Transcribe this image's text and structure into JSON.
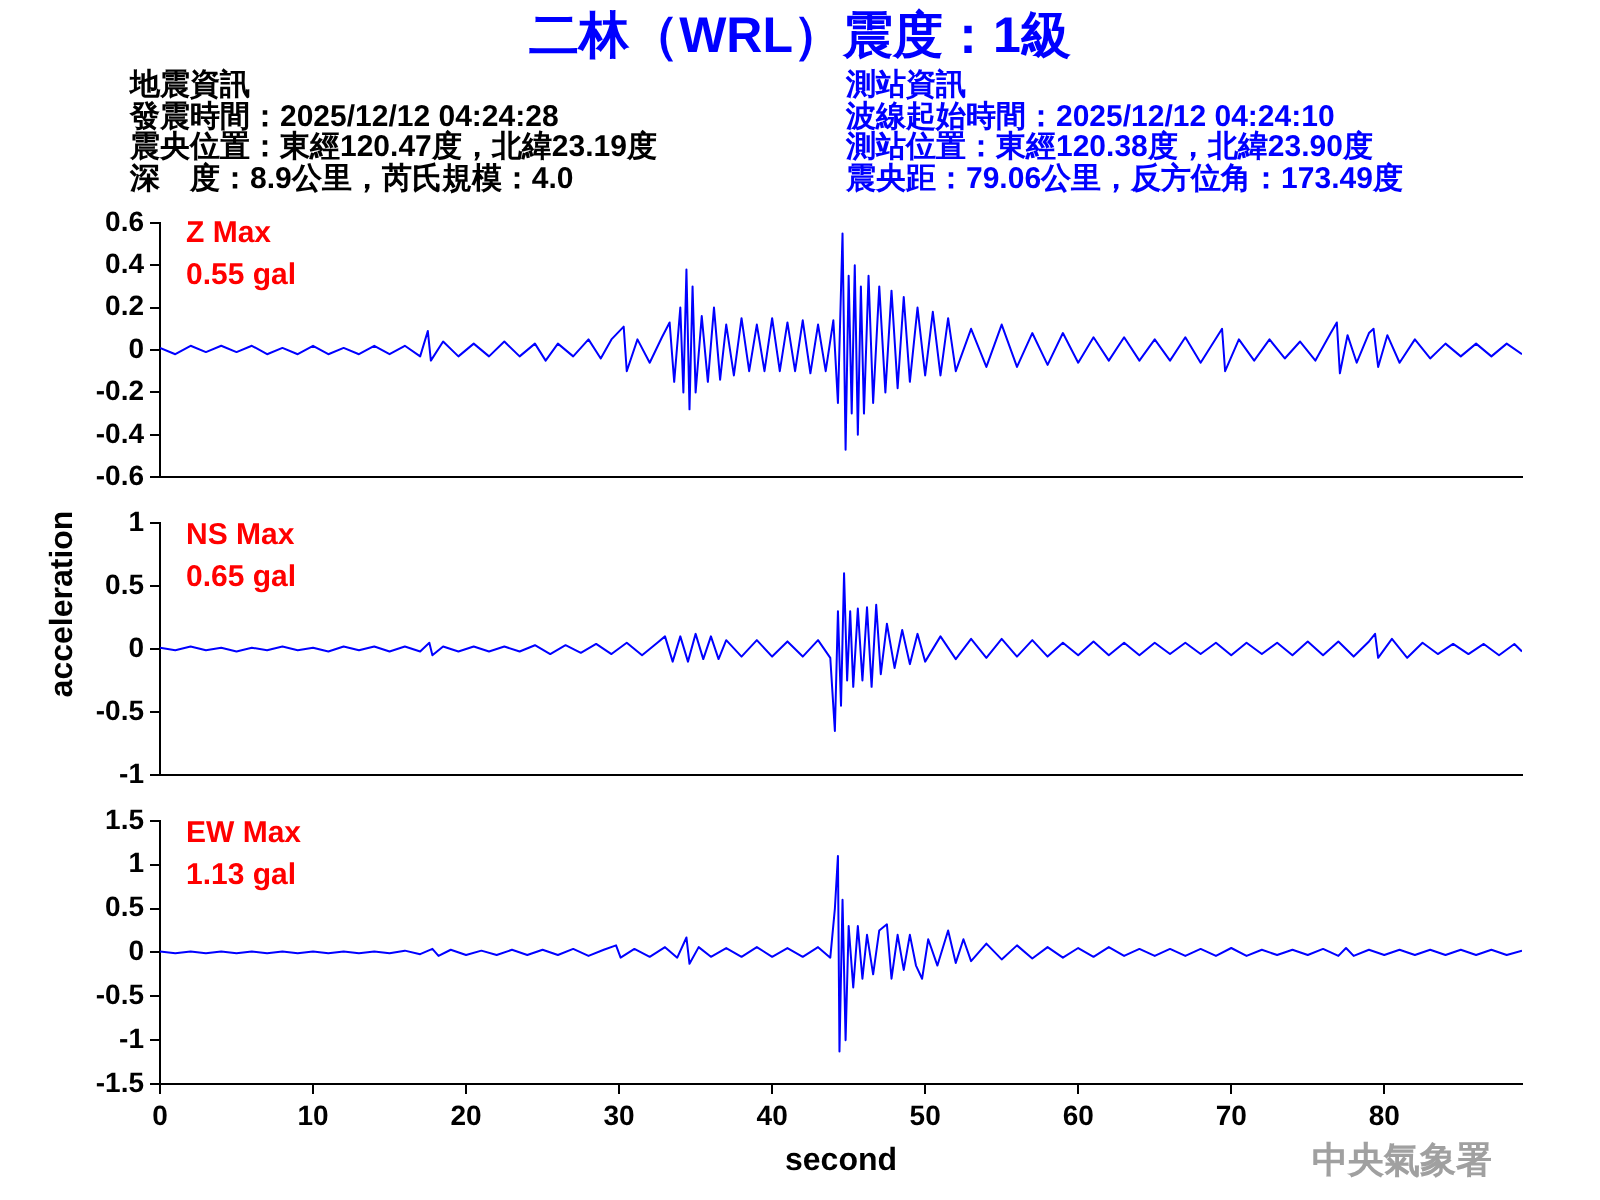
{
  "chart_data": [
    {
      "type": "line",
      "title": "二林（WRL）震度：1級",
      "annotations": [
        "地震資訊",
        "發震時間：2025/12/12 04:24:28",
        "震央位置：東經120.47度，北緯23.19度",
        "深　度：8.9公里，芮氏規模：4.0",
        "測站資訊",
        "波線起始時間：2025/12/12 04:24:10",
        "測站位置：東經120.38度，北緯23.90度",
        "震央距：79.06公里，反方位角：173.49度",
        "Z Max",
        "0.55 gal"
      ],
      "tick_labels": "y",
      "xlim": [
        0,
        89
      ],
      "ylim": [
        -0.6,
        0.6
      ],
      "yticks": [
        -0.6,
        -0.4,
        -0.2,
        0,
        0.2,
        0.4,
        0.6
      ],
      "color": "#0000ff",
      "x": [
        0,
        1,
        2,
        3,
        4,
        5,
        6,
        7,
        8,
        9,
        10,
        11,
        12,
        13,
        14,
        15,
        16,
        17,
        17.5,
        17.7,
        18.5,
        19.5,
        20.5,
        21.5,
        22.5,
        23.5,
        24.5,
        25.2,
        26,
        27,
        28,
        28.8,
        29.5,
        30.3,
        30.5,
        31.2,
        32,
        32.8,
        33.3,
        33.6,
        34,
        34.2,
        34.4,
        34.6,
        34.8,
        35,
        35.4,
        35.8,
        36.2,
        36.6,
        37,
        37.5,
        38,
        38.5,
        39,
        39.5,
        40,
        40.5,
        41,
        41.5,
        42,
        42.5,
        43,
        43.5,
        44,
        44.3,
        44.6,
        44.8,
        45,
        45.2,
        45.4,
        45.6,
        45.8,
        46,
        46.3,
        46.6,
        47,
        47.4,
        47.8,
        48.2,
        48.6,
        49,
        49.5,
        50,
        50.5,
        51,
        51.5,
        52,
        53,
        54,
        55,
        56,
        57,
        58,
        59,
        60,
        61,
        62,
        63,
        64,
        65,
        66,
        67,
        68,
        69.4,
        69.6,
        70.5,
        71.5,
        72.5,
        73.5,
        74.5,
        75.5,
        76.5,
        76.9,
        77.1,
        77.6,
        78.2,
        79,
        79.3,
        79.6,
        80.2,
        81,
        82,
        83,
        84,
        85,
        86,
        87,
        88,
        89
      ],
      "values": [
        0.01,
        -0.02,
        0.02,
        -0.01,
        0.02,
        -0.01,
        0.02,
        -0.02,
        0.01,
        -0.02,
        0.02,
        -0.02,
        0.01,
        -0.02,
        0.02,
        -0.02,
        0.02,
        -0.03,
        0.09,
        -0.05,
        0.04,
        -0.03,
        0.03,
        -0.03,
        0.04,
        -0.03,
        0.03,
        -0.05,
        0.03,
        -0.03,
        0.05,
        -0.04,
        0.05,
        0.11,
        -0.1,
        0.05,
        -0.06,
        0.06,
        0.13,
        -0.15,
        0.2,
        -0.2,
        0.38,
        -0.28,
        0.3,
        -0.2,
        0.16,
        -0.15,
        0.2,
        -0.14,
        0.12,
        -0.12,
        0.15,
        -0.1,
        0.12,
        -0.1,
        0.15,
        -0.1,
        0.13,
        -0.1,
        0.14,
        -0.11,
        0.12,
        -0.1,
        0.14,
        -0.25,
        0.55,
        -0.47,
        0.35,
        -0.3,
        0.4,
        -0.4,
        0.3,
        -0.3,
        0.35,
        -0.25,
        0.3,
        -0.2,
        0.28,
        -0.18,
        0.25,
        -0.15,
        0.2,
        -0.12,
        0.18,
        -0.12,
        0.15,
        -0.1,
        0.1,
        -0.08,
        0.12,
        -0.08,
        0.08,
        -0.07,
        0.08,
        -0.06,
        0.06,
        -0.05,
        0.06,
        -0.05,
        0.05,
        -0.05,
        0.06,
        -0.06,
        0.1,
        -0.1,
        0.05,
        -0.05,
        0.05,
        -0.04,
        0.04,
        -0.05,
        0.08,
        0.13,
        -0.11,
        0.07,
        -0.06,
        0.08,
        0.1,
        -0.08,
        0.07,
        -0.06,
        0.05,
        -0.04,
        0.03,
        -0.03,
        0.03,
        -0.03,
        0.03,
        -0.02
      ]
    },
    {
      "type": "line",
      "ylabel": "acceleration",
      "annotations": [
        "NS Max",
        "0.65 gal"
      ],
      "tick_labels": "y",
      "xlim": [
        0,
        89
      ],
      "ylim": [
        -1,
        1
      ],
      "yticks": [
        -1,
        -0.5,
        0,
        0.5,
        1
      ],
      "color": "#0000ff",
      "x": [
        0,
        1,
        2,
        3,
        4,
        5,
        6,
        7,
        8,
        9,
        10,
        11,
        12,
        13,
        14,
        15,
        16,
        17,
        17.6,
        17.8,
        18.5,
        19.5,
        20.5,
        21.5,
        22.5,
        23.5,
        24.5,
        25.5,
        26.5,
        27.5,
        28.5,
        29.5,
        30.5,
        31.5,
        32.5,
        33,
        33.5,
        34,
        34.5,
        35,
        35.5,
        36,
        36.5,
        37,
        38,
        39,
        40,
        41,
        42,
        43,
        43.8,
        44.1,
        44.3,
        44.5,
        44.7,
        44.9,
        45.1,
        45.3,
        45.6,
        45.9,
        46.2,
        46.5,
        46.8,
        47.1,
        47.5,
        48,
        48.5,
        49,
        49.5,
        50,
        51,
        52,
        53,
        54,
        55,
        56,
        57,
        58,
        59,
        60,
        61,
        62,
        63,
        64,
        65,
        66,
        67,
        68,
        69,
        70,
        71,
        72,
        73,
        74,
        75,
        76,
        77,
        78,
        79,
        79.4,
        79.6,
        80.5,
        81.5,
        82.5,
        83.5,
        84.5,
        85.5,
        86.5,
        87.5,
        88.5,
        89
      ],
      "values": [
        0.01,
        -0.01,
        0.02,
        -0.01,
        0.01,
        -0.02,
        0.01,
        -0.01,
        0.02,
        -0.01,
        0.01,
        -0.02,
        0.02,
        -0.01,
        0.02,
        -0.02,
        0.02,
        -0.02,
        0.05,
        -0.05,
        0.02,
        -0.02,
        0.02,
        -0.02,
        0.02,
        -0.02,
        0.03,
        -0.04,
        0.03,
        -0.03,
        0.04,
        -0.04,
        0.05,
        -0.05,
        0.05,
        0.1,
        -0.1,
        0.1,
        -0.1,
        0.12,
        -0.08,
        0.1,
        -0.08,
        0.07,
        -0.06,
        0.07,
        -0.06,
        0.06,
        -0.06,
        0.07,
        -0.07,
        -0.65,
        0.3,
        -0.45,
        0.6,
        -0.25,
        0.3,
        -0.3,
        0.32,
        -0.25,
        0.33,
        -0.3,
        0.35,
        -0.2,
        0.2,
        -0.15,
        0.15,
        -0.12,
        0.12,
        -0.1,
        0.1,
        -0.08,
        0.08,
        -0.07,
        0.08,
        -0.06,
        0.07,
        -0.06,
        0.05,
        -0.05,
        0.06,
        -0.05,
        0.05,
        -0.05,
        0.05,
        -0.04,
        0.05,
        -0.04,
        0.05,
        -0.05,
        0.05,
        -0.04,
        0.05,
        -0.05,
        0.06,
        -0.05,
        0.06,
        -0.06,
        0.06,
        0.12,
        -0.07,
        0.08,
        -0.07,
        0.05,
        -0.04,
        0.04,
        -0.04,
        0.04,
        -0.05,
        0.04,
        -0.02
      ]
    },
    {
      "type": "line",
      "xlabel": "second",
      "annotations": [
        "EW Max",
        "1.13 gal",
        "中央氣象署"
      ],
      "xlim": [
        0,
        89
      ],
      "xticks": [
        0,
        10,
        20,
        30,
        40,
        50,
        60,
        70,
        80
      ],
      "ylim": [
        -1.5,
        1.5
      ],
      "yticks": [
        -1.5,
        -1,
        -0.5,
        0,
        0.5,
        1,
        1.5
      ],
      "color": "#0000ff",
      "x": [
        0,
        1,
        2,
        3,
        4,
        5,
        6,
        7,
        8,
        9,
        10,
        11,
        12,
        13,
        14,
        15,
        16,
        17,
        17.8,
        18.2,
        19,
        20,
        21,
        22,
        23,
        24,
        25,
        26,
        27,
        28,
        29,
        29.8,
        30.1,
        31,
        32,
        33,
        33.8,
        34.4,
        34.6,
        35.2,
        36,
        37,
        38,
        39,
        40,
        41,
        42,
        43,
        43.8,
        44.1,
        44.3,
        44.4,
        44.6,
        44.8,
        45,
        45.3,
        45.6,
        45.9,
        46.2,
        46.6,
        47,
        47.5,
        47.8,
        48.2,
        48.6,
        49,
        49.4,
        49.8,
        50.2,
        50.8,
        51.5,
        52,
        52.5,
        53,
        54,
        55,
        56,
        57,
        58,
        59,
        60,
        61,
        62,
        63,
        64,
        65,
        66,
        67,
        68,
        69,
        70,
        71,
        72,
        73,
        74,
        75,
        76,
        77,
        77.5,
        78,
        79,
        80,
        81,
        82,
        83,
        84,
        85,
        86,
        87,
        88,
        89
      ],
      "values": [
        0.01,
        -0.01,
        0.01,
        -0.01,
        0.01,
        -0.01,
        0.01,
        -0.01,
        0.01,
        -0.01,
        0.01,
        -0.01,
        0.01,
        -0.01,
        0.01,
        -0.01,
        0.02,
        -0.02,
        0.04,
        -0.04,
        0.03,
        -0.03,
        0.02,
        -0.03,
        0.03,
        -0.03,
        0.03,
        -0.03,
        0.04,
        -0.04,
        0.03,
        0.08,
        -0.06,
        0.04,
        -0.05,
        0.06,
        -0.06,
        0.17,
        -0.13,
        0.06,
        -0.05,
        0.05,
        -0.05,
        0.06,
        -0.05,
        0.05,
        -0.05,
        0.06,
        -0.06,
        0.5,
        1.1,
        -1.13,
        0.6,
        -1,
        0.3,
        -0.4,
        0.3,
        -0.3,
        0.2,
        -0.25,
        0.25,
        0.32,
        -0.3,
        0.2,
        -0.2,
        0.2,
        -0.15,
        -0.3,
        0.15,
        -0.15,
        0.25,
        -0.12,
        0.15,
        -0.1,
        0.1,
        -0.08,
        0.08,
        -0.07,
        0.06,
        -0.06,
        0.05,
        -0.05,
        0.06,
        -0.04,
        0.04,
        -0.04,
        0.04,
        -0.04,
        0.04,
        -0.04,
        0.05,
        -0.04,
        0.03,
        -0.03,
        0.03,
        -0.03,
        0.04,
        -0.04,
        0.05,
        -0.04,
        0.03,
        -0.03,
        0.03,
        -0.03,
        0.03,
        -0.03,
        0.03,
        -0.03,
        0.03,
        -0.03,
        0.02
      ]
    }
  ]
}
